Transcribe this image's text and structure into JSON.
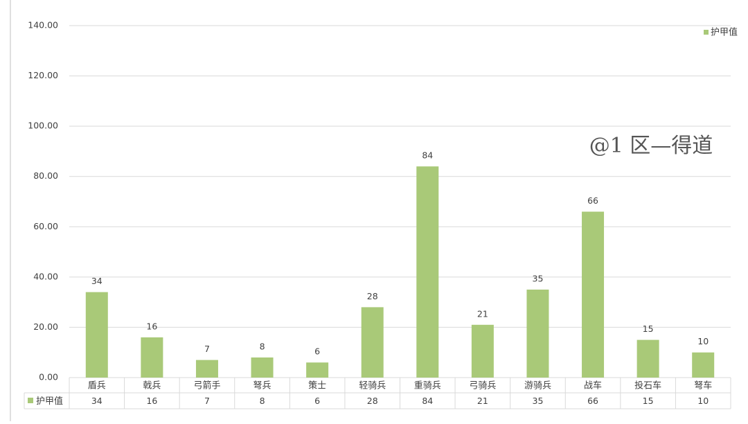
{
  "chart_data": {
    "type": "bar",
    "categories": [
      "盾兵",
      "戟兵",
      "弓箭手",
      "弩兵",
      "策士",
      "轻骑兵",
      "重骑兵",
      "弓骑兵",
      "游骑兵",
      "战车",
      "投石车",
      "弩车"
    ],
    "series": [
      {
        "name": "护甲值",
        "color": "#a9c978",
        "values": [
          34,
          16,
          7,
          8,
          6,
          28,
          84,
          21,
          35,
          66,
          15,
          10
        ]
      }
    ],
    "ylim": [
      0,
      140
    ],
    "yticks": [
      {
        "value": 0,
        "label": "0.00"
      },
      {
        "value": 20,
        "label": "20.00"
      },
      {
        "value": 40,
        "label": "40.00"
      },
      {
        "value": 60,
        "label": "60.00"
      },
      {
        "value": 80,
        "label": "80.00"
      },
      {
        "value": 100,
        "label": "100.00"
      },
      {
        "value": 120,
        "label": "120.00"
      },
      {
        "value": 140,
        "label": "140.00"
      }
    ],
    "grid": true,
    "legend": "top-right",
    "watermark": "@1 区—得道"
  }
}
